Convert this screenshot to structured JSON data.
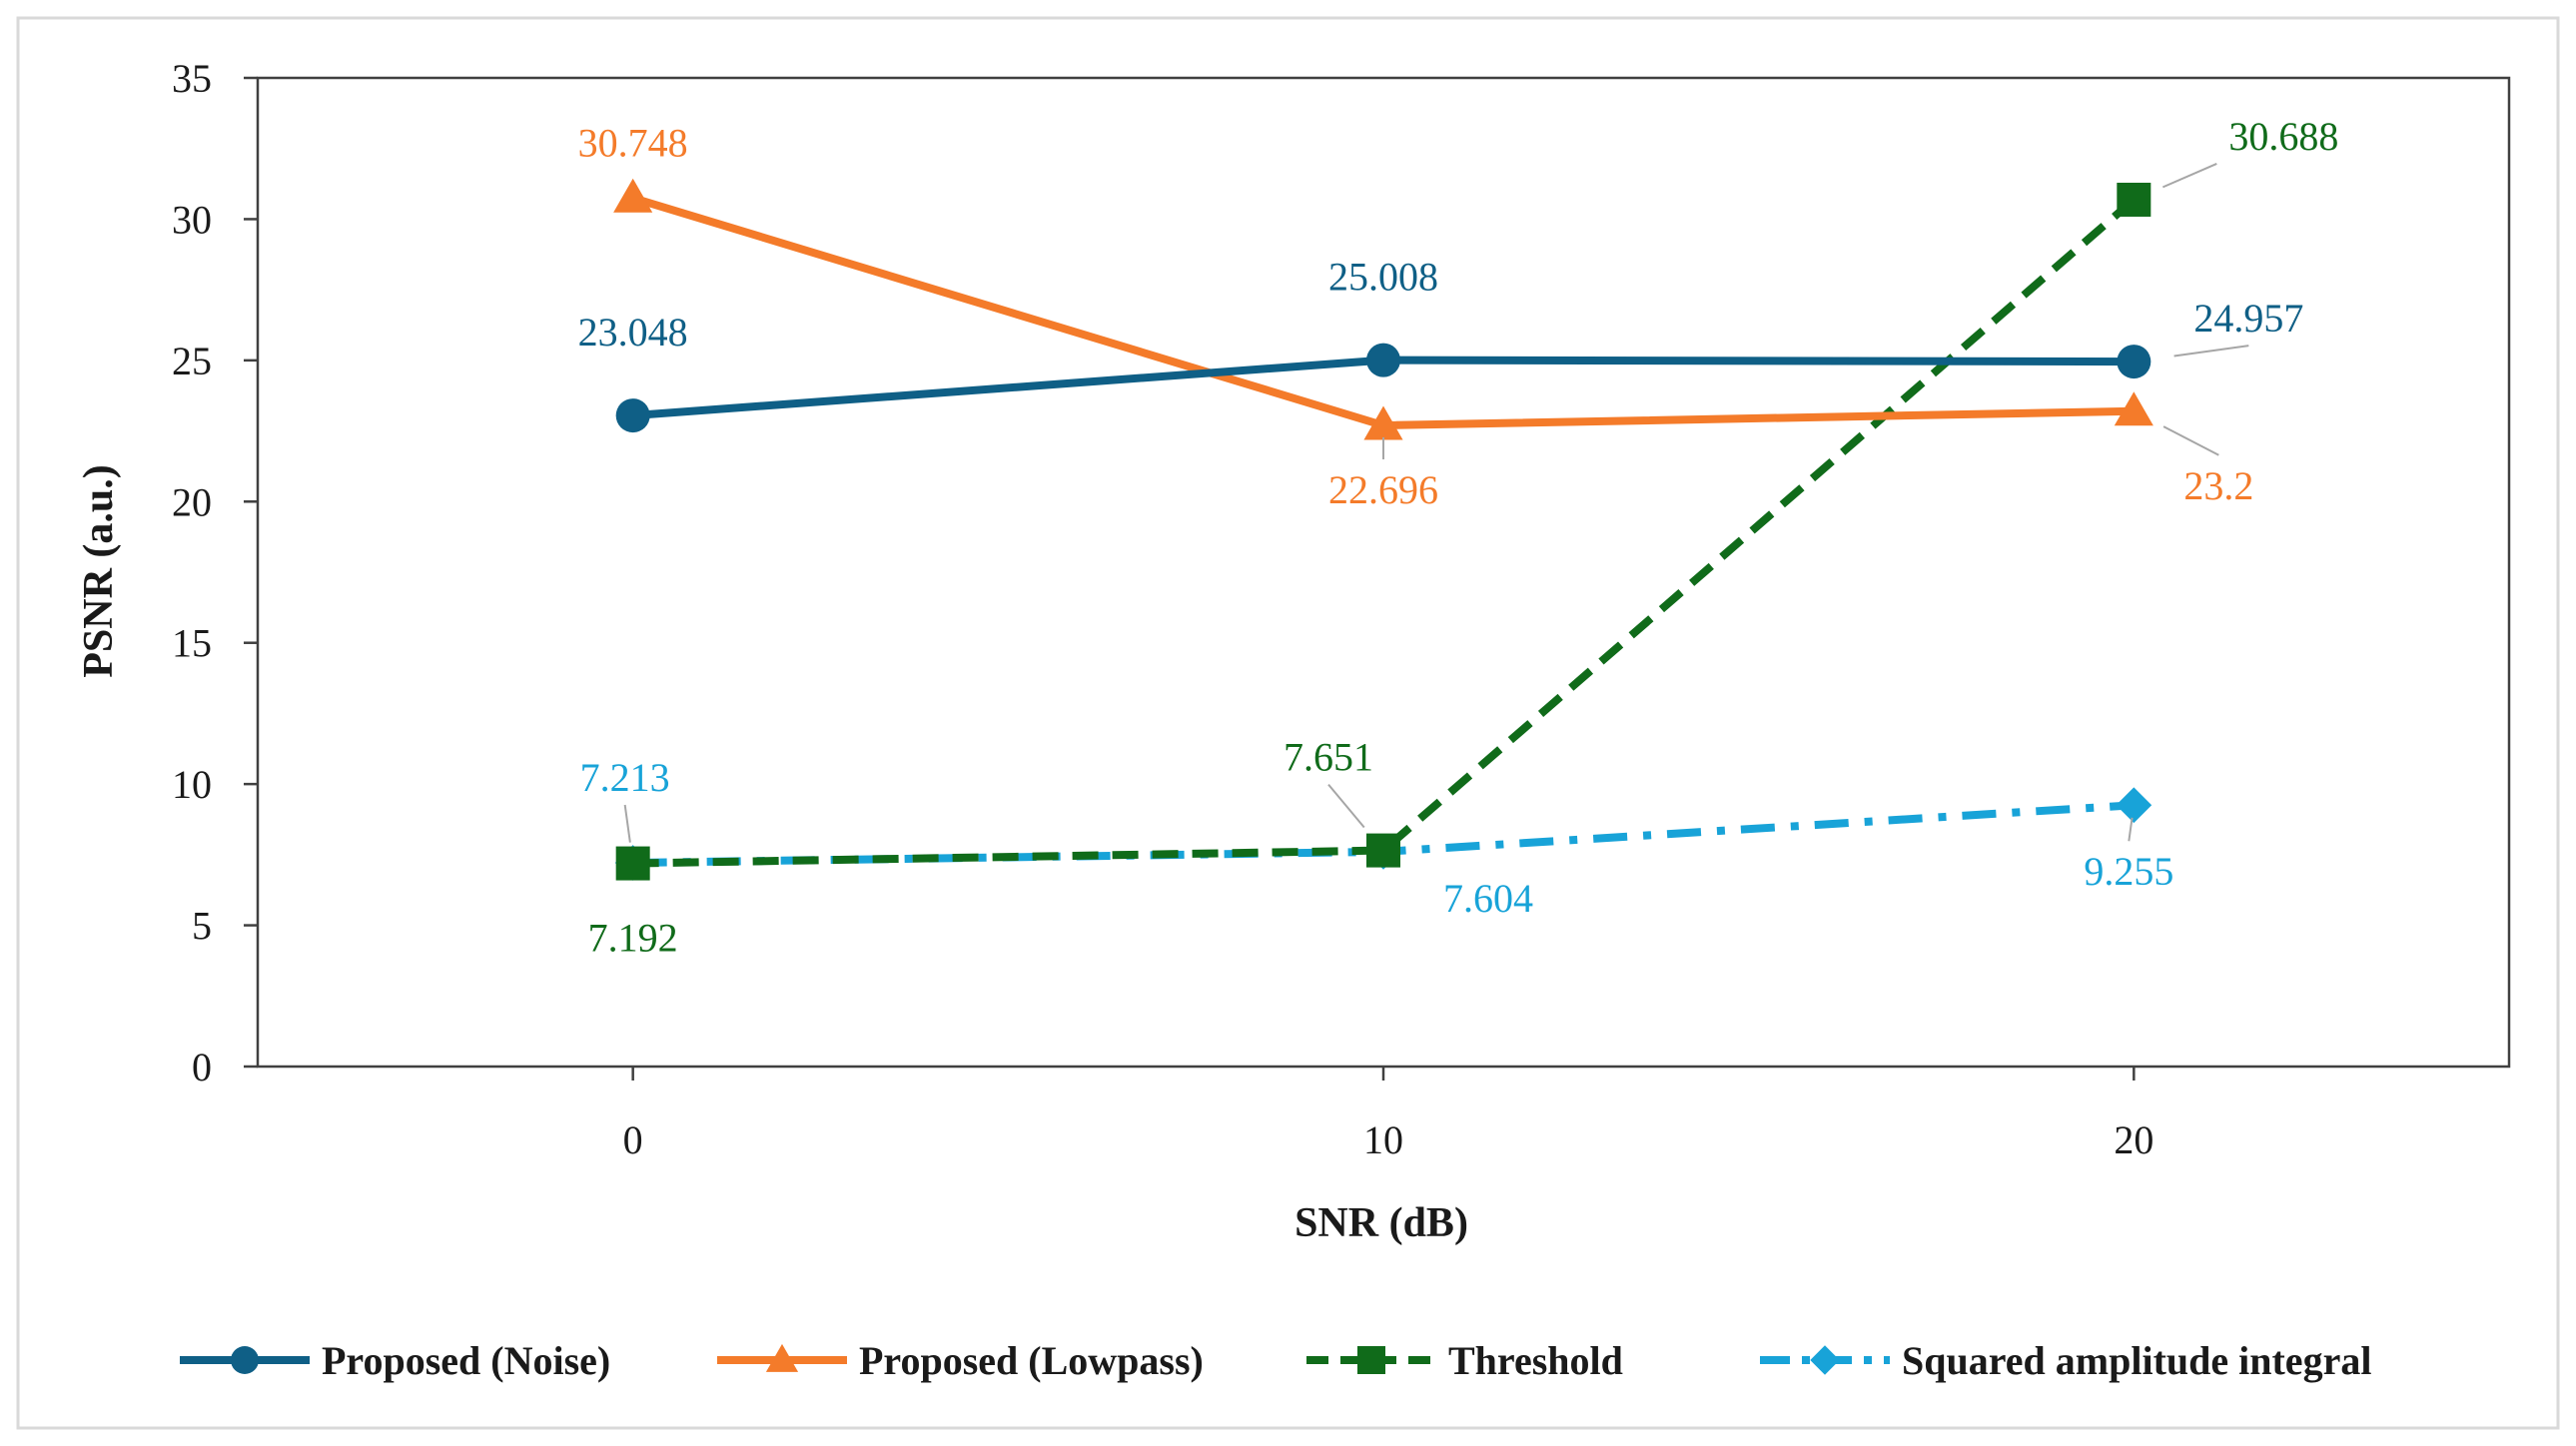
{
  "chart_data": {
    "type": "line",
    "title": "",
    "xlabel": "SNR (dB)",
    "ylabel": "PSNR (a.u.)",
    "x": [
      0,
      10,
      20
    ],
    "x_tick_labels": [
      "0",
      "10",
      "20"
    ],
    "xlim": [
      -5,
      25
    ],
    "ylim": [
      0,
      35
    ],
    "y_ticks": [
      0,
      5,
      10,
      15,
      20,
      25,
      30,
      35
    ],
    "y_tick_labels": [
      "0",
      "5",
      "10",
      "15",
      "20",
      "25",
      "30",
      "35"
    ],
    "grid": false,
    "legend_position": "bottom",
    "series": [
      {
        "name": "Proposed (Noise)",
        "values": [
          23.048,
          25.008,
          24.957
        ],
        "labels": [
          "23.048",
          "25.008",
          "24.957"
        ],
        "color": "#0f5f86",
        "line_style": "solid",
        "marker": "circle"
      },
      {
        "name": "Proposed (Lowpass)",
        "values": [
          30.748,
          22.696,
          23.2
        ],
        "labels": [
          "30.748",
          "22.696",
          "23.2"
        ],
        "color": "#f47b2a",
        "line_style": "solid",
        "marker": "triangle"
      },
      {
        "name": "Threshold",
        "values": [
          7.192,
          7.651,
          30.688
        ],
        "labels": [
          "7.192",
          "7.651",
          "30.688"
        ],
        "color": "#106b1a",
        "line_style": "dashed",
        "marker": "square"
      },
      {
        "name": "Squared amplitude integral",
        "values": [
          7.213,
          7.604,
          9.255
        ],
        "labels": [
          "7.213",
          "7.604",
          "9.255"
        ],
        "color": "#18a3d8",
        "line_style": "dash-dot",
        "marker": "diamond"
      }
    ]
  }
}
